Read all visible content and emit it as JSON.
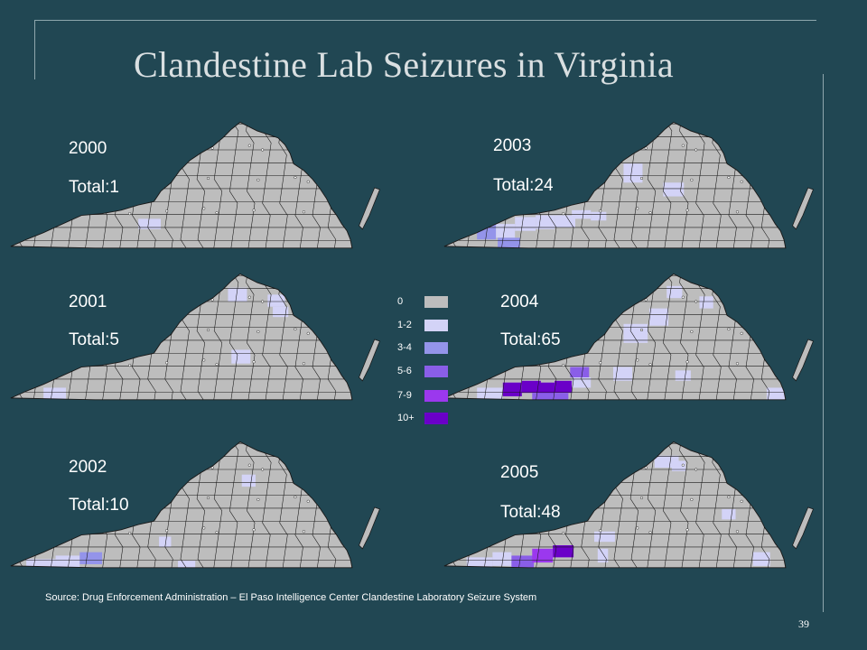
{
  "title": "Clandestine Lab Seizures in Virginia",
  "legend": [
    {
      "label": "0",
      "color": "#bdbdbd"
    },
    {
      "label": "1-2",
      "color": "#d3d3f7"
    },
    {
      "label": "3-4",
      "color": "#9494ea"
    },
    {
      "label": "5-6",
      "color": "#8a5ee8"
    },
    {
      "label": "7-9",
      "color": "#9b38ee"
    },
    {
      "label": "10+",
      "color": "#6a00c8"
    }
  ],
  "maps": [
    {
      "year": "2000",
      "total": "Total:1"
    },
    {
      "year": "2003",
      "total": "Total:24"
    },
    {
      "year": "2001",
      "total": "Total:5"
    },
    {
      "year": "2004",
      "total": "Total:65"
    },
    {
      "year": "2002",
      "total": "Total:10"
    },
    {
      "year": "2005",
      "total": "Total:48"
    }
  ],
  "source": "Source:  Drug Enforcement Administration – El Paso Intelligence Center Clandestine Laboratory Seizure System",
  "page_number": "39",
  "highlights": [
    [
      [
        150,
        116,
        26,
        12,
        1
      ]
    ],
    [
      [
        40,
        122,
        22,
        18,
        2
      ],
      [
        62,
        122,
        22,
        16,
        1
      ],
      [
        84,
        114,
        24,
        16,
        1
      ],
      [
        108,
        112,
        22,
        16,
        1
      ],
      [
        64,
        138,
        26,
        14,
        2
      ],
      [
        130,
        112,
        24,
        14,
        1
      ],
      [
        150,
        106,
        22,
        10,
        1
      ],
      [
        172,
        108,
        18,
        10,
        1
      ],
      [
        210,
        52,
        22,
        22,
        1
      ],
      [
        256,
        74,
        24,
        16,
        1
      ]
    ],
    [
      [
        40,
        136,
        26,
        16,
        1
      ],
      [
        254,
        20,
        22,
        16,
        1
      ],
      [
        300,
        28,
        20,
        14,
        1
      ],
      [
        306,
        42,
        18,
        12,
        1
      ],
      [
        258,
        92,
        22,
        16,
        1
      ]
    ],
    [
      [
        40,
        136,
        30,
        14,
        1
      ],
      [
        70,
        130,
        22,
        16,
        5
      ],
      [
        92,
        128,
        22,
        14,
        5
      ],
      [
        110,
        130,
        20,
        14,
        5
      ],
      [
        130,
        128,
        20,
        14,
        5
      ],
      [
        104,
        142,
        42,
        12,
        3
      ],
      [
        148,
        112,
        22,
        12,
        3
      ],
      [
        150,
        124,
        22,
        12,
        1
      ],
      [
        210,
        62,
        28,
        22,
        1
      ],
      [
        240,
        44,
        22,
        20,
        1
      ],
      [
        260,
        18,
        18,
        14,
        1
      ],
      [
        298,
        30,
        16,
        14,
        1
      ],
      [
        198,
        112,
        22,
        16,
        1
      ],
      [
        270,
        116,
        18,
        12,
        1
      ],
      [
        376,
        136,
        24,
        16,
        1
      ]
    ],
    [
      [
        20,
        140,
        34,
        12,
        1
      ],
      [
        54,
        136,
        28,
        16,
        1
      ],
      [
        82,
        132,
        26,
        14,
        2
      ],
      [
        174,
        114,
        14,
        12,
        1
      ],
      [
        270,
        42,
        16,
        14,
        1
      ],
      [
        196,
        142,
        20,
        10,
        1
      ]
    ],
    [
      [
        28,
        138,
        30,
        14,
        1
      ],
      [
        58,
        132,
        22,
        16,
        1
      ],
      [
        80,
        136,
        26,
        14,
        3
      ],
      [
        104,
        128,
        24,
        16,
        4
      ],
      [
        128,
        124,
        24,
        14,
        5
      ],
      [
        180,
        128,
        12,
        16,
        1
      ],
      [
        246,
        20,
        28,
        14,
        1
      ],
      [
        266,
        26,
        16,
        12,
        1
      ],
      [
        324,
        82,
        16,
        12,
        1
      ],
      [
        360,
        132,
        20,
        16,
        1
      ],
      [
        176,
        108,
        24,
        12,
        1
      ]
    ]
  ]
}
